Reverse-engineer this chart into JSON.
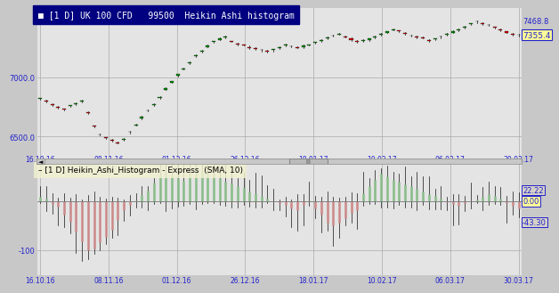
{
  "title_upper": "■ [1 D] UK 100 CFD   99500  Heikin Ashi histogram",
  "title_lower": "– [1 D] Heikin_Ashi_Histogram - Express  (SMA, 10)",
  "bg_color": "#c8c8c8",
  "plot_bg": "#e4e4e4",
  "title_bg": "#000080",
  "title_fg": "#ffffff",
  "upper_ylim": [
    6320,
    7580
  ],
  "upper_yticks": [
    6500.0,
    7000.0
  ],
  "upper_price_high": "7468.8",
  "upper_price_cur": "7355.4",
  "lower_ylim": [
    -150,
    75
  ],
  "lower_ytick": -100,
  "lower_price_labels": [
    "22.22",
    "0.00",
    "-43.30"
  ],
  "lower_price_vals": [
    22.22,
    0.0,
    -43.3
  ],
  "dates": [
    "16.10.16",
    "08.11.16",
    "01.12.16",
    "26.12.16",
    "18.01.17",
    "10.02.17",
    "06.03.17",
    "30.03.17"
  ],
  "grid_color": "#aaaaaa",
  "candle_bull": "#008800",
  "candle_bear": "#cc0000",
  "candle_wick": "#111111",
  "hist_bull_color": "#88bb88",
  "hist_bear_color": "#cc8888",
  "hist_wick": "#111111",
  "label_color": "#2222cc",
  "upper_prices": [
    6820,
    6800,
    6770,
    6750,
    6730,
    6760,
    6780,
    6800,
    6700,
    6590,
    6520,
    6490,
    6470,
    6450,
    6480,
    6540,
    6600,
    6660,
    6720,
    6770,
    6830,
    6900,
    6960,
    7020,
    7070,
    7120,
    7180,
    7220,
    7260,
    7300,
    7320,
    7340,
    7300,
    7280,
    7270,
    7250,
    7240,
    7230,
    7220,
    7230,
    7250,
    7270,
    7260,
    7250,
    7260,
    7270,
    7290,
    7310,
    7330,
    7350,
    7360,
    7340,
    7320,
    7300,
    7310,
    7320,
    7340,
    7360,
    7380,
    7400,
    7390,
    7370,
    7350,
    7340,
    7330,
    7310,
    7320,
    7340,
    7360,
    7380,
    7400,
    7420,
    7450,
    7468,
    7450,
    7440,
    7420,
    7400,
    7380,
    7360,
    7355
  ],
  "hist_values": [
    8,
    5,
    -5,
    -12,
    -28,
    -42,
    -62,
    -82,
    -100,
    -96,
    -84,
    -72,
    -58,
    -38,
    -18,
    -8,
    2,
    12,
    22,
    38,
    52,
    56,
    52,
    47,
    42,
    56,
    64,
    60,
    56,
    50,
    46,
    40,
    36,
    30,
    26,
    20,
    16,
    10,
    5,
    0,
    -4,
    -8,
    -14,
    -18,
    -8,
    2,
    -14,
    -28,
    -44,
    -50,
    -44,
    -34,
    -24,
    -18,
    16,
    30,
    44,
    56,
    50,
    44,
    40,
    34,
    30,
    25,
    20,
    15,
    10,
    5,
    -2,
    -6,
    -10,
    -4,
    0,
    4,
    8,
    14,
    10,
    5,
    -4,
    -10,
    -14
  ],
  "n_candles": 81,
  "n_hist": 81
}
